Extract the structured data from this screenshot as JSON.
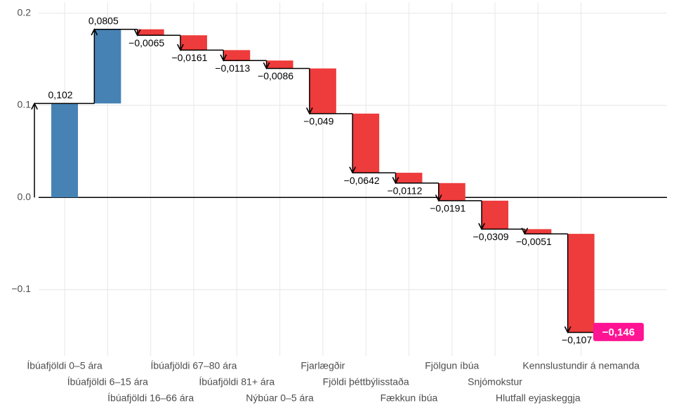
{
  "chart_data": {
    "type": "waterfall",
    "categories": [
      "Íbúafjöldi 0–5 ára",
      "Íbúafjöldi 6–15 ára",
      "Íbúafjöldi 16–66 ára",
      "Íbúafjöldi 67–80 ára",
      "Íbúafjöldi 81+ ára",
      "Nýbúar 0–5 ára",
      "Fjarlægðir",
      "Fjöldi þéttbýlisstaða",
      "Fækkun íbúa",
      "Fjölgun íbúa",
      "Snjómokstur",
      "Hlutfall eyjaskeggja",
      "Kennslustundir á nemanda"
    ],
    "values": [
      0.102,
      0.0805,
      -0.0065,
      -0.0161,
      -0.0113,
      -0.0086,
      -0.049,
      -0.0642,
      -0.0112,
      -0.0191,
      -0.0309,
      -0.0051,
      -0.107
    ],
    "value_labels": [
      "0,102",
      "0,0805",
      "−0,0065",
      "−0,0161",
      "−0,0113",
      "−0,0086",
      "−0,049",
      "−0,0642",
      "−0,0112",
      "−0,0191",
      "−0,0309",
      "−0,0051",
      "−0,107"
    ],
    "positive_color": "#4682b4",
    "negative_color": "#ee3b3b",
    "total": -0.146,
    "total_label": "−0,146",
    "total_color": "#ff1493",
    "ylim": [
      -0.172,
      0.212
    ],
    "yticks": [
      {
        "value": -0.1,
        "label": "−0.1"
      },
      {
        "value": 0,
        "label": "0.0"
      },
      0.1,
      0.2
    ],
    "grid": true
  }
}
